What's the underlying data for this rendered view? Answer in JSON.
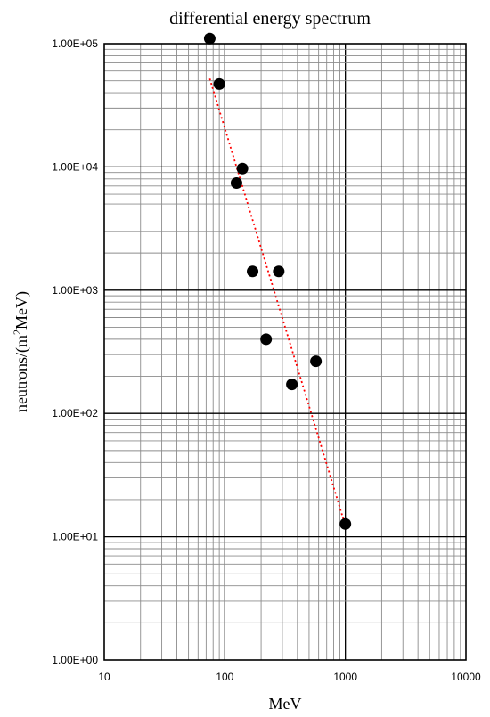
{
  "chart_data": {
    "type": "scatter",
    "title": "differential energy spectrum",
    "xlabel": "MeV",
    "ylabel_main": "neutrons/(m",
    "ylabel_sup": "2",
    "ylabel_rest": "MeV)",
    "x_scale": "log",
    "y_scale": "log",
    "xlim": [
      10,
      10000
    ],
    "ylim": [
      1,
      100000
    ],
    "grid": true,
    "x_ticks": [
      10,
      100,
      1000,
      10000
    ],
    "x_tick_labels": [
      "10",
      "100",
      "1000",
      "10000"
    ],
    "y_ticks": [
      1,
      10,
      100,
      1000,
      10000,
      100000
    ],
    "y_tick_labels": [
      "1.00E+00",
      "1.00E+01",
      "1.00E+02",
      "1.00E+03",
      "1.00E+04",
      "1.00E+05"
    ],
    "series": [
      {
        "marker_color": "#000000",
        "points": [
          {
            "x": 75,
            "y": 110000
          },
          {
            "x": 90,
            "y": 47000
          },
          {
            "x": 140,
            "y": 9700
          },
          {
            "x": 125,
            "y": 7400
          },
          {
            "x": 170,
            "y": 1420
          },
          {
            "x": 280,
            "y": 1420
          },
          {
            "x": 220,
            "y": 400
          },
          {
            "x": 570,
            "y": 265
          },
          {
            "x": 360,
            "y": 172
          },
          {
            "x": 1000,
            "y": 12.7
          }
        ]
      }
    ],
    "trendline": {
      "style": "dotted",
      "color": "#ff0000",
      "points": [
        {
          "x": 75,
          "y": 52000
        },
        {
          "x": 970,
          "y": 13.5
        }
      ]
    }
  }
}
